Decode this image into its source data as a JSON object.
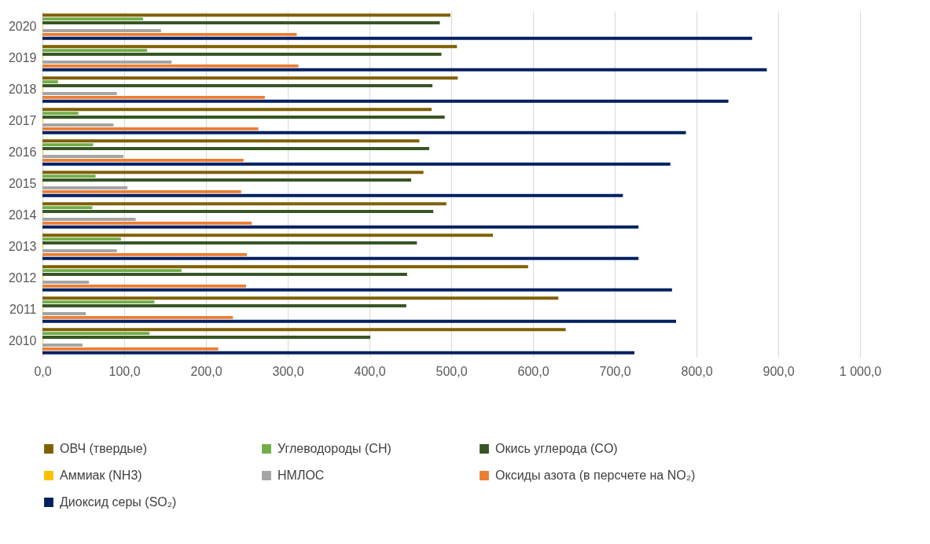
{
  "chart_data": {
    "type": "bar",
    "orientation": "horizontal",
    "categories": [
      "2020",
      "2019",
      "2018",
      "2017",
      "2016",
      "2015",
      "2014",
      "2013",
      "2012",
      "2011",
      "2010"
    ],
    "series": [
      {
        "name": "ОВЧ (твердые)",
        "color": "#7f6000",
        "values": [
          499,
          507,
          508,
          476,
          461,
          466,
          494,
          551,
          594,
          631,
          640
        ]
      },
      {
        "name": "Углеводороды (CH)",
        "color": "#70ad47",
        "values": [
          123,
          128,
          19,
          44,
          62,
          65,
          61,
          96,
          170,
          137,
          131
        ]
      },
      {
        "name": "Окись углерода (CO)",
        "color": "#375623",
        "values": [
          486,
          488,
          477,
          492,
          473,
          451,
          478,
          458,
          446,
          445,
          401
        ]
      },
      {
        "name": "Аммиак (NH3)",
        "color": "#ffc000",
        "values": [
          1,
          1,
          1,
          1,
          1,
          1,
          1,
          1,
          1,
          1,
          1
        ]
      },
      {
        "name": "НМЛОС",
        "color": "#a5a5a5",
        "values": [
          145,
          158,
          91,
          87,
          99,
          104,
          114,
          91,
          57,
          53,
          49
        ]
      },
      {
        "name": "Оксиды азота (в персчете на NO₂)",
        "color": "#ed7d31",
        "values": [
          311,
          313,
          272,
          264,
          246,
          243,
          256,
          250,
          249,
          233,
          215
        ]
      },
      {
        "name": "Диоксид серы (SO₂)",
        "color": "#002060",
        "values": [
          868,
          886,
          839,
          787,
          768,
          710,
          729,
          729,
          770,
          775,
          724
        ]
      }
    ],
    "xlim": [
      0,
      1000
    ],
    "xticks": [
      {
        "value": 0,
        "label": "0,0"
      },
      {
        "value": 100,
        "label": "100,0"
      },
      {
        "value": 200,
        "label": "200,0"
      },
      {
        "value": 300,
        "label": "300,0"
      },
      {
        "value": 400,
        "label": "400,0"
      },
      {
        "value": 500,
        "label": "500,0"
      },
      {
        "value": 600,
        "label": "600,0"
      },
      {
        "value": 700,
        "label": "700,0"
      },
      {
        "value": 800,
        "label": "800,0"
      },
      {
        "value": 900,
        "label": "900,0"
      },
      {
        "value": 1000,
        "label": "1 000,0"
      }
    ],
    "grid": "x",
    "legend": "bottom"
  }
}
